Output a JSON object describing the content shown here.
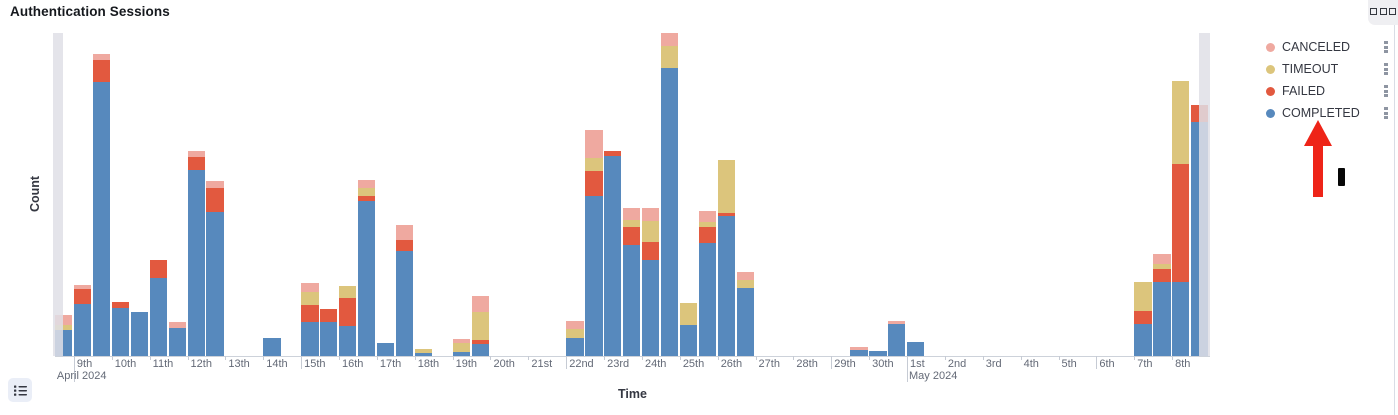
{
  "header": {
    "title": "Authentication Sessions"
  },
  "toolbar": {
    "panel_options_icon": "three-squares-icon"
  },
  "chart_data": {
    "type": "bar",
    "stacked": true,
    "title": "Authentication Sessions",
    "xlabel": "Time",
    "ylabel": "Count",
    "bucket_interval": "12h",
    "x_range": [
      "Apr 8 2024 12:00",
      "May 9 2024 00:00"
    ],
    "ylim": [
      0,
      650
    ],
    "grid": false,
    "legend_position": "right",
    "series_order": [
      "completed",
      "failed",
      "timeout",
      "canceled"
    ],
    "colors": {
      "completed": "#5789bd",
      "failed": "#e2593f",
      "timeout": "#dcc57c",
      "canceled": "#efa9a0",
      "partial_bucket_band": "#e3e3ea"
    },
    "x_ticks": [
      {
        "label": "9th",
        "month": "April 2024"
      },
      {
        "label": "10th"
      },
      {
        "label": "11th"
      },
      {
        "label": "12th"
      },
      {
        "label": "13th"
      },
      {
        "label": "14th"
      },
      {
        "label": "15th",
        "week_start": true
      },
      {
        "label": "16th"
      },
      {
        "label": "17th"
      },
      {
        "label": "18th"
      },
      {
        "label": "19th"
      },
      {
        "label": "20th"
      },
      {
        "label": "21st"
      },
      {
        "label": "22nd",
        "week_start": true
      },
      {
        "label": "23rd"
      },
      {
        "label": "24th"
      },
      {
        "label": "25th"
      },
      {
        "label": "26th"
      },
      {
        "label": "27th"
      },
      {
        "label": "28th"
      },
      {
        "label": "29th",
        "week_start": true
      },
      {
        "label": "30th"
      },
      {
        "label": "1st",
        "month": "May 2024"
      },
      {
        "label": "2nd"
      },
      {
        "label": "3rd"
      },
      {
        "label": "4th"
      },
      {
        "label": "5th"
      },
      {
        "label": "6th",
        "week_start": true
      },
      {
        "label": "7th"
      },
      {
        "label": "8th"
      }
    ],
    "bars": [
      {
        "label": "Apr 8 PM",
        "slot": 0,
        "values": {
          "completed": 52,
          "timeout": 10,
          "canceled": 20
        }
      },
      {
        "label": "Apr 9 AM",
        "slot": 1,
        "values": {
          "completed": 104,
          "failed": 30,
          "canceled": 8
        }
      },
      {
        "label": "Apr 9 PM",
        "slot": 2,
        "values": {
          "completed": 548,
          "failed": 44,
          "canceled": 12
        }
      },
      {
        "label": "Apr 10 AM",
        "slot": 3,
        "values": {
          "completed": 96,
          "failed": 12
        }
      },
      {
        "label": "Apr 10 PM",
        "slot": 4,
        "values": {
          "completed": 88
        }
      },
      {
        "label": "Apr 11 AM",
        "slot": 5,
        "values": {
          "completed": 156,
          "failed": 36
        }
      },
      {
        "label": "Apr 11 PM",
        "slot": 6,
        "values": {
          "completed": 56,
          "canceled": 12
        }
      },
      {
        "label": "Apr 12 AM",
        "slot": 7,
        "values": {
          "completed": 372,
          "failed": 26,
          "canceled": 12
        }
      },
      {
        "label": "Apr 12 PM",
        "slot": 8,
        "values": {
          "completed": 288,
          "failed": 48,
          "canceled": 14
        }
      },
      {
        "label": "Apr 14 AM",
        "slot": 11,
        "values": {
          "completed": 36
        }
      },
      {
        "label": "Apr 15 AM",
        "slot": 13,
        "values": {
          "completed": 68,
          "failed": 34,
          "timeout": 26,
          "canceled": 18
        }
      },
      {
        "label": "Apr 15 PM",
        "slot": 14,
        "values": {
          "completed": 68,
          "failed": 26
        }
      },
      {
        "label": "Apr 16 AM",
        "slot": 15,
        "values": {
          "completed": 60,
          "failed": 56,
          "timeout": 24
        }
      },
      {
        "label": "Apr 16 PM",
        "slot": 16,
        "values": {
          "completed": 310,
          "failed": 10,
          "timeout": 16,
          "canceled": 16
        }
      },
      {
        "label": "Apr 17 AM",
        "slot": 17,
        "values": {
          "completed": 26
        }
      },
      {
        "label": "Apr 17 PM",
        "slot": 18,
        "values": {
          "completed": 210,
          "failed": 22,
          "canceled": 30
        }
      },
      {
        "label": "Apr 18 AM",
        "slot": 19,
        "values": {
          "completed": 6,
          "timeout": 8
        }
      },
      {
        "label": "Apr 19 AM",
        "slot": 21,
        "values": {
          "completed": 8,
          "timeout": 18,
          "canceled": 8
        }
      },
      {
        "label": "Apr 19 PM",
        "slot": 22,
        "values": {
          "completed": 24,
          "failed": 8,
          "timeout": 56,
          "canceled": 32
        }
      },
      {
        "label": "Apr 22 AM",
        "slot": 27,
        "values": {
          "completed": 36,
          "timeout": 18,
          "canceled": 16
        }
      },
      {
        "label": "Apr 22 PM",
        "slot": 28,
        "values": {
          "completed": 320,
          "failed": 50,
          "timeout": 26,
          "canceled": 56
        }
      },
      {
        "label": "Apr 23 AM",
        "slot": 29,
        "values": {
          "completed": 400,
          "failed": 10
        }
      },
      {
        "label": "Apr 23 PM",
        "slot": 30,
        "values": {
          "completed": 222,
          "failed": 36,
          "timeout": 14,
          "canceled": 24
        }
      },
      {
        "label": "Apr 24 AM",
        "slot": 31,
        "values": {
          "completed": 192,
          "failed": 36,
          "timeout": 42,
          "canceled": 26
        }
      },
      {
        "label": "Apr 24 PM",
        "slot": 32,
        "values": {
          "completed": 576,
          "timeout": 44,
          "canceled": 26
        }
      },
      {
        "label": "Apr 25 AM",
        "slot": 33,
        "values": {
          "completed": 62,
          "timeout": 44
        }
      },
      {
        "label": "Apr 25 PM",
        "slot": 34,
        "values": {
          "completed": 226,
          "failed": 32,
          "timeout": 10,
          "canceled": 22
        }
      },
      {
        "label": "Apr 26 AM",
        "slot": 35,
        "values": {
          "completed": 280,
          "failed": 6,
          "timeout": 106
        }
      },
      {
        "label": "Apr 26 PM",
        "slot": 36,
        "values": {
          "completed": 136,
          "timeout": 16,
          "canceled": 16
        }
      },
      {
        "label": "Apr 29 PM",
        "slot": 42,
        "values": {
          "completed": 12,
          "canceled": 6
        }
      },
      {
        "label": "Apr 30 AM",
        "slot": 43,
        "values": {
          "completed": 10
        }
      },
      {
        "label": "Apr 30 PM",
        "slot": 44,
        "values": {
          "completed": 64,
          "canceled": 6
        }
      },
      {
        "label": "May 1 AM",
        "slot": 45,
        "values": {
          "completed": 28
        }
      },
      {
        "label": "May 7 AM",
        "slot": 57,
        "values": {
          "completed": 64,
          "failed": 26,
          "timeout": 58
        }
      },
      {
        "label": "May 7 PM",
        "slot": 58,
        "values": {
          "completed": 148,
          "failed": 26,
          "timeout": 10,
          "canceled": 20
        }
      },
      {
        "label": "May 8 AM",
        "slot": 59,
        "values": {
          "completed": 148,
          "failed": 236,
          "timeout": 166
        }
      },
      {
        "label": "May 8 PM",
        "slot": 60,
        "values": {
          "completed": 468,
          "failed": 34
        }
      }
    ],
    "partial_buckets": [
      {
        "position": "start"
      },
      {
        "position": "end"
      }
    ]
  },
  "legend": {
    "items": [
      {
        "label": "CANCELED",
        "color": "#efa9a0"
      },
      {
        "label": "TIMEOUT",
        "color": "#dcc57c"
      },
      {
        "label": "FAILED",
        "color": "#e2593f"
      },
      {
        "label": "COMPLETED",
        "color": "#5789bd"
      }
    ],
    "item_menu_icon": "grip-squares-icon"
  },
  "footer": {
    "legend_toggle_icon": "list-icon"
  },
  "annotations": {
    "red_arrow": {
      "points_to": "COMPLETED",
      "color": "#ee2418"
    },
    "cursor_mark": {
      "color": "#070707"
    }
  }
}
